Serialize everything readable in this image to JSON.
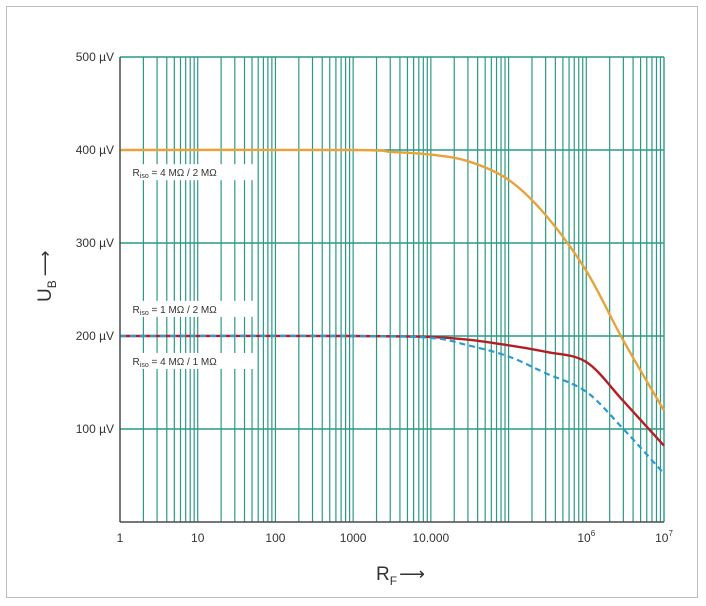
{
  "chart_data": {
    "type": "line",
    "xscale": "log",
    "xlim": [
      1,
      10000000
    ],
    "ylim": [
      0,
      500
    ],
    "grid": true,
    "x_ticks": [
      {
        "value": 1,
        "label": "1",
        "sup": ""
      },
      {
        "value": 10,
        "label": "10",
        "sup": ""
      },
      {
        "value": 100,
        "label": "100",
        "sup": ""
      },
      {
        "value": 1000,
        "label": "1000",
        "sup": ""
      },
      {
        "value": 10000,
        "label": "10.000",
        "sup": ""
      },
      {
        "value": 1000000,
        "label": "10",
        "sup": "6"
      },
      {
        "value": 10000000,
        "label": "10",
        "sup": "7"
      }
    ],
    "y_ticks": [
      {
        "value": 100,
        "label": "100 µV"
      },
      {
        "value": 200,
        "label": "200 µV"
      },
      {
        "value": 300,
        "label": "300 µV"
      },
      {
        "value": 400,
        "label": "400 µV"
      },
      {
        "value": 500,
        "label": "500 µV"
      }
    ],
    "xlabel": {
      "main": "R",
      "sub": "F",
      "arrow": "⟶"
    },
    "ylabel": {
      "main": "U",
      "sub": "B",
      "arrow": "⟶"
    },
    "series": [
      {
        "style": "solid",
        "color": "#e8a33a",
        "x": [
          1,
          1000,
          3000,
          10000,
          30000,
          100000,
          300000,
          1000000,
          3000000,
          10000000
        ],
        "y": [
          400,
          400,
          398,
          395,
          388,
          368,
          330,
          270,
          195,
          120
        ]
      },
      {
        "style": "solid",
        "color": "#b41f24",
        "x": [
          1,
          1000,
          10000,
          30000,
          100000,
          300000,
          1000000,
          3000000,
          10000000
        ],
        "y": [
          200,
          200,
          199,
          196,
          190,
          183,
          172,
          130,
          82
        ]
      },
      {
        "style": "dashed",
        "color": "#2b9ad4",
        "x": [
          1,
          1000,
          10000,
          30000,
          100000,
          300000,
          1000000,
          3000000,
          10000000
        ],
        "y": [
          200,
          200,
          198,
          190,
          178,
          160,
          140,
          100,
          52
        ]
      }
    ],
    "annotations": [
      {
        "main": "R",
        "sub": "iso",
        "rest": " = 4 MΩ / 2 MΩ",
        "x": 1.45,
        "y": 374
      },
      {
        "main": "R",
        "sub": "iso",
        "rest": " = 1 MΩ / 2 MΩ",
        "x": 1.45,
        "y": 227
      },
      {
        "main": "R",
        "sub": "iso",
        "rest": " = 4 MΩ / 1 MΩ",
        "x": 1.45,
        "y": 171
      }
    ],
    "colors": {
      "grid": "#2a9a86",
      "axis": "#4a4a4a",
      "text": "#333333"
    }
  }
}
